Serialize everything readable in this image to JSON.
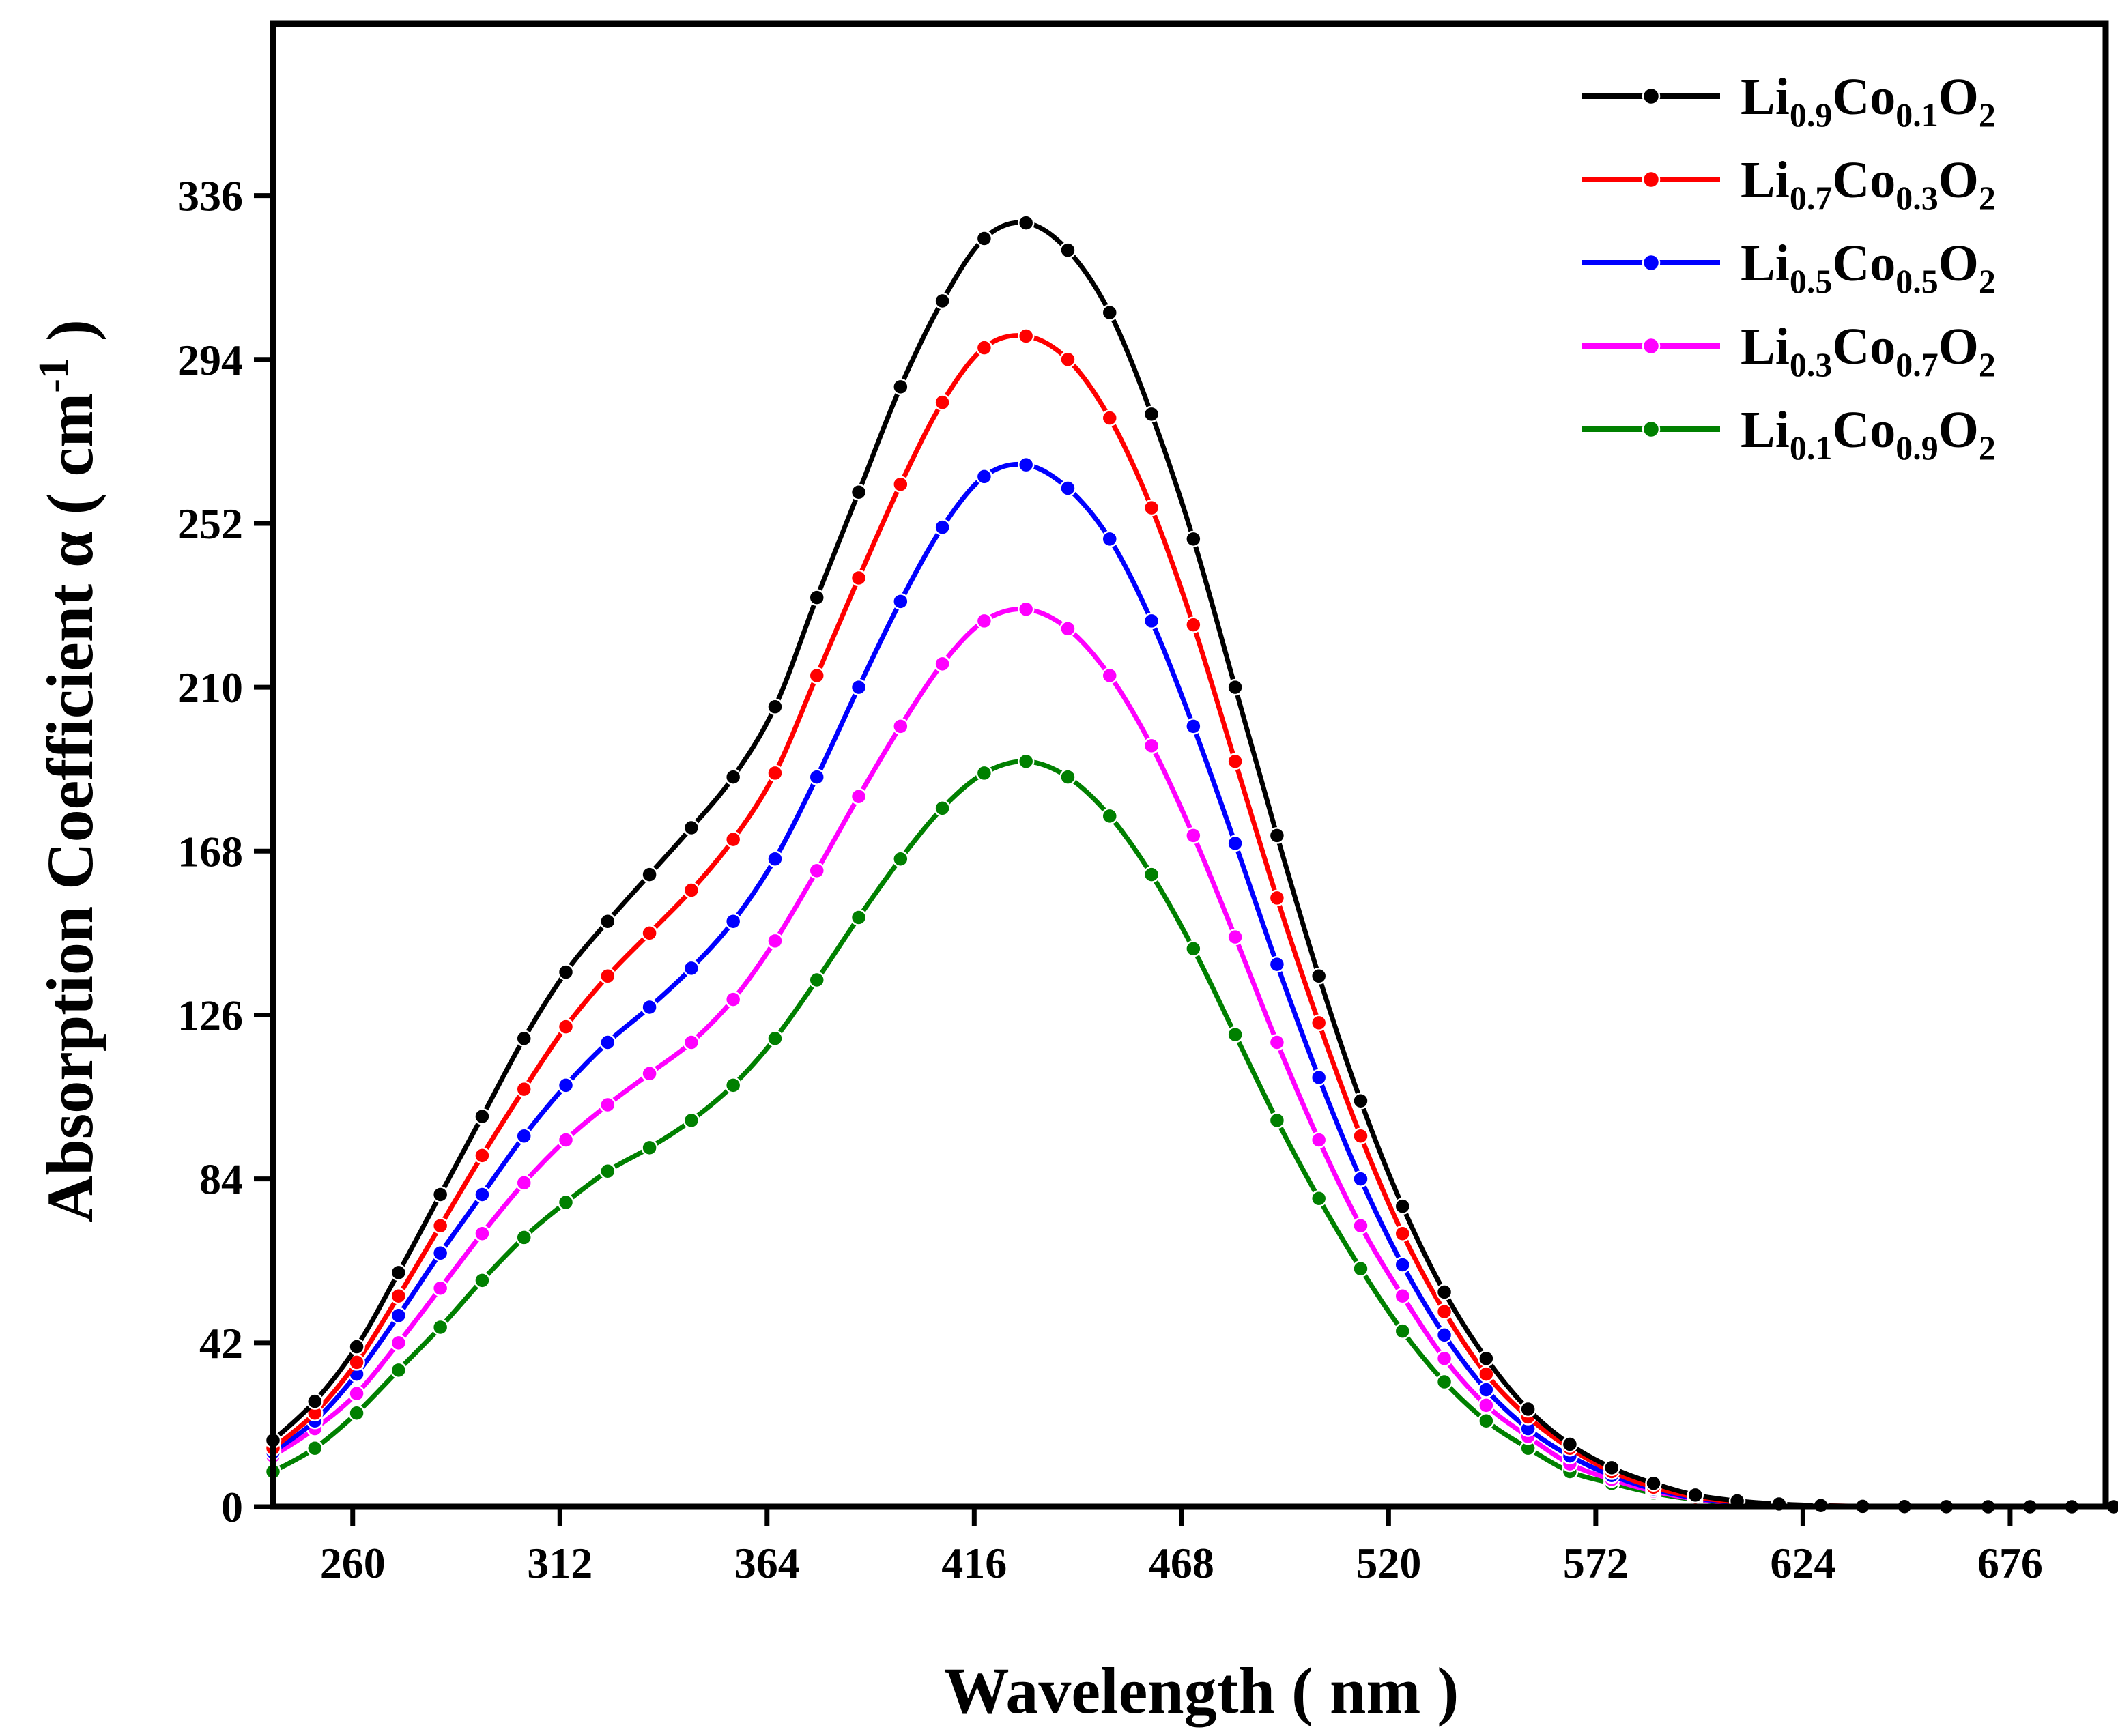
{
  "chart_data": {
    "type": "line",
    "title": "",
    "xlabel": "Wavelength ( nm )",
    "ylabel": "Absorption Coefficient α ( cm",
    "ylabel_superscript": "-1",
    "ylabel_suffix": " )",
    "xlim": [
      240,
      700
    ],
    "ylim": [
      0,
      380
    ],
    "xticks": [
      260,
      312,
      364,
      416,
      468,
      520,
      572,
      624,
      676
    ],
    "yticks": [
      0,
      42,
      84,
      126,
      168,
      210,
      252,
      294,
      336
    ],
    "grid": false,
    "legend_position": "top-right",
    "x": [
      240,
      250.5,
      261,
      271.5,
      282,
      292.5,
      303,
      313.5,
      324,
      334.5,
      345,
      355.5,
      366,
      376.5,
      387,
      397.5,
      408,
      418.5,
      429,
      439.5,
      450,
      460.5,
      471,
      481.5,
      492,
      502.5,
      513,
      523.5,
      534,
      544.5,
      555,
      565.5,
      576,
      586.5,
      597,
      607.5,
      618,
      628.5,
      639,
      649.5,
      660,
      670.5,
      681,
      691.5,
      702
    ],
    "series": [
      {
        "name": "Li0.9Co0.1O2",
        "legend": {
          "el1": "Li",
          "sub1": "0.9",
          "el2": "Co",
          "sub2": "0.1",
          "el3": "O",
          "sub3": "2"
        },
        "color": "#000000",
        "values": [
          17,
          27,
          41,
          60,
          80,
          100,
          120,
          137,
          150,
          162,
          174,
          187,
          205,
          233,
          260,
          287,
          309,
          325,
          329,
          322,
          306,
          280,
          248,
          210,
          172,
          136,
          104,
          77,
          55,
          38,
          25,
          16,
          10,
          6,
          3,
          1.5,
          0.7,
          0.3,
          0.1,
          0.05,
          0.02,
          0.01,
          0,
          0,
          0
        ]
      },
      {
        "name": "Li0.7Co0.3O2",
        "legend": {
          "el1": "Li",
          "sub1": "0.7",
          "el2": "Co",
          "sub2": "0.3",
          "el3": "O",
          "sub3": "2"
        },
        "color": "#ff0000",
        "values": [
          15,
          24,
          37,
          54,
          72,
          90,
          107,
          123,
          136,
          147,
          158,
          171,
          188,
          213,
          238,
          262,
          283,
          297,
          300,
          294,
          279,
          256,
          226,
          191,
          156,
          124,
          95,
          70,
          50,
          34,
          23,
          15,
          9,
          5,
          2.5,
          1.2,
          0.6,
          0.3,
          0.1,
          0.05,
          0.02,
          0.01,
          0,
          0,
          0
        ]
      },
      {
        "name": "Li0.5Co0.5O2",
        "legend": {
          "el1": "Li",
          "sub1": "0.5",
          "el2": "Co",
          "sub2": "0.5",
          "el3": "O",
          "sub3": "2"
        },
        "color": "#0000ff",
        "values": [
          14,
          22,
          34,
          49,
          65,
          80,
          95,
          108,
          119,
          128,
          138,
          150,
          166,
          187,
          210,
          232,
          251,
          264,
          267,
          261,
          248,
          227,
          200,
          170,
          139,
          110,
          84,
          62,
          44,
          30,
          20,
          13,
          8,
          4.5,
          2.2,
          1.1,
          0.5,
          0.2,
          0.1,
          0.05,
          0.02,
          0.01,
          0,
          0,
          0
        ]
      },
      {
        "name": "Li0.3Co0.7O2",
        "legend": {
          "el1": "Li",
          "sub1": "0.3",
          "el2": "Co",
          "sub2": "0.7",
          "el3": "O",
          "sub3": "2"
        },
        "color": "#ff00ff",
        "values": [
          13,
          20,
          29,
          42,
          56,
          70,
          83,
          94,
          103,
          111,
          119,
          130,
          145,
          163,
          182,
          200,
          216,
          227,
          230,
          225,
          213,
          195,
          172,
          146,
          119,
          94,
          72,
          54,
          38,
          26,
          18,
          11,
          7,
          4,
          2,
          1,
          0.5,
          0.2,
          0.1,
          0.05,
          0.02,
          0.01,
          0,
          0,
          0
        ]
      },
      {
        "name": "Li0.1Co0.9O2",
        "legend": {
          "el1": "Li",
          "sub1": "0.1",
          "el2": "Co",
          "sub2": "0.9",
          "el3": "O",
          "sub3": "2"
        },
        "color": "#008000",
        "values": [
          9,
          15,
          24,
          35,
          46,
          58,
          69,
          78,
          86,
          92,
          99,
          108,
          120,
          135,
          151,
          166,
          179,
          188,
          191,
          187,
          177,
          162,
          143,
          121,
          99,
          79,
          61,
          45,
          32,
          22,
          15,
          9,
          6,
          3.5,
          1.8,
          0.9,
          0.4,
          0.2,
          0.1,
          0.05,
          0.02,
          0.01,
          0,
          0,
          0
        ]
      }
    ]
  }
}
